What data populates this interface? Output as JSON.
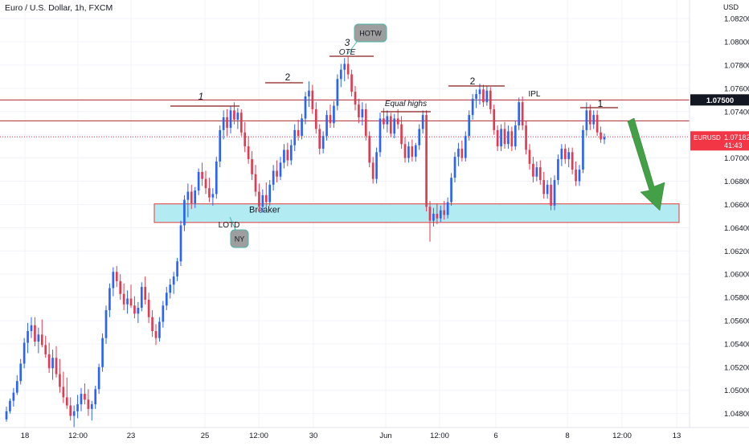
{
  "header": {
    "title": "Euro / U.S. Dollar, 1h, FXCM"
  },
  "chart_data": {
    "type": "candlestick",
    "currency": "USD",
    "y_ticks": [
      1.082,
      1.08,
      1.078,
      1.076,
      1.074,
      1.072,
      1.07,
      1.068,
      1.066,
      1.064,
      1.062,
      1.06,
      1.058,
      1.056,
      1.054,
      1.052,
      1.05,
      1.048
    ],
    "y_tick_labels": [
      "1.08200",
      "1.08000",
      "1.07800",
      "1.07600",
      "1.07400",
      "1.07200",
      "1.07000",
      "1.06800",
      "1.06600",
      "1.06400",
      "1.06200",
      "1.06000",
      "1.05800",
      "1.05600",
      "1.05400",
      "1.05200",
      "1.05000",
      "1.04800"
    ],
    "ylim": [
      1.0468,
      1.0836
    ],
    "x_ticks": [
      "18",
      "12:00",
      "23",
      "25",
      "12:00",
      "30",
      "Jun",
      "12:00",
      "6",
      "8",
      "12:00",
      "13"
    ],
    "price_lines": [
      {
        "value": 1.075,
        "label": "1.07500",
        "color": "#b22833"
      },
      {
        "value": 1.0732,
        "label": "",
        "color": "#b22833"
      }
    ],
    "current_price": {
      "symbol": "EURUSD",
      "value": 1.07182,
      "label": "1.07182",
      "countdown": "41:43",
      "color": "#f23645"
    },
    "zone": {
      "label": "Breaker",
      "top": 1.06605,
      "bottom": 1.06445,
      "color": "#b2ebf2"
    },
    "annotations": [
      {
        "text": "1",
        "price": 1.0747,
        "italic": true
      },
      {
        "text": "2",
        "price": 1.0765,
        "italic": false
      },
      {
        "text": "3",
        "price": 1.0871,
        "italic": true
      },
      {
        "text": "OTE",
        "price": 1.0789,
        "italic": true
      },
      {
        "text": "Equal highs",
        "price": 1.0744,
        "italic": true
      },
      {
        "text": "2",
        "price": 1.0763,
        "italic": false
      },
      {
        "text": "IPL",
        "price": 1.0753,
        "italic": false
      },
      {
        "text": "1",
        "price": 1.0745,
        "italic": false
      },
      {
        "text": "LOTD",
        "price": 1.0643,
        "italic": false
      }
    ],
    "callouts": [
      "HOTW",
      "NY"
    ],
    "candles": [
      {
        "o": 1.0475,
        "h": 1.0486,
        "l": 1.0473,
        "c": 1.0482
      },
      {
        "o": 1.0482,
        "h": 1.0493,
        "l": 1.048,
        "c": 1.0491
      },
      {
        "o": 1.0491,
        "h": 1.0502,
        "l": 1.0486,
        "c": 1.0498
      },
      {
        "o": 1.0498,
        "h": 1.0513,
        "l": 1.0496,
        "c": 1.0508
      },
      {
        "o": 1.0508,
        "h": 1.0527,
        "l": 1.0505,
        "c": 1.0523
      },
      {
        "o": 1.0523,
        "h": 1.0545,
        "l": 1.0519,
        "c": 1.0541
      },
      {
        "o": 1.0541,
        "h": 1.0558,
        "l": 1.0532,
        "c": 1.0551
      },
      {
        "o": 1.0551,
        "h": 1.0563,
        "l": 1.0545,
        "c": 1.0556
      },
      {
        "o": 1.0556,
        "h": 1.0563,
        "l": 1.0538,
        "c": 1.0542
      },
      {
        "o": 1.0542,
        "h": 1.0554,
        "l": 1.0532,
        "c": 1.0548
      },
      {
        "o": 1.0548,
        "h": 1.0561,
        "l": 1.0537,
        "c": 1.0539
      },
      {
        "o": 1.0539,
        "h": 1.0547,
        "l": 1.0528,
        "c": 1.0531
      },
      {
        "o": 1.0531,
        "h": 1.0541,
        "l": 1.0515,
        "c": 1.0519
      },
      {
        "o": 1.0519,
        "h": 1.0535,
        "l": 1.0509,
        "c": 1.0528
      },
      {
        "o": 1.0528,
        "h": 1.0538,
        "l": 1.0511,
        "c": 1.0514
      },
      {
        "o": 1.0514,
        "h": 1.0527,
        "l": 1.0498,
        "c": 1.0503
      },
      {
        "o": 1.0503,
        "h": 1.0516,
        "l": 1.0489,
        "c": 1.0494
      },
      {
        "o": 1.0494,
        "h": 1.0511,
        "l": 1.0484,
        "c": 1.0487
      },
      {
        "o": 1.0487,
        "h": 1.0494,
        "l": 1.0474,
        "c": 1.0478
      },
      {
        "o": 1.0478,
        "h": 1.0487,
        "l": 1.0468,
        "c": 1.0482
      },
      {
        "o": 1.0482,
        "h": 1.0496,
        "l": 1.0476,
        "c": 1.0488
      },
      {
        "o": 1.0488,
        "h": 1.0502,
        "l": 1.0482,
        "c": 1.0497
      },
      {
        "o": 1.0497,
        "h": 1.0506,
        "l": 1.0488,
        "c": 1.0492
      },
      {
        "o": 1.0492,
        "h": 1.0501,
        "l": 1.0478,
        "c": 1.0484
      },
      {
        "o": 1.0484,
        "h": 1.0491,
        "l": 1.0474,
        "c": 1.0488
      },
      {
        "o": 1.0488,
        "h": 1.0504,
        "l": 1.0484,
        "c": 1.0501
      },
      {
        "o": 1.0501,
        "h": 1.0523,
        "l": 1.0497,
        "c": 1.052
      },
      {
        "o": 1.052,
        "h": 1.0549,
        "l": 1.0516,
        "c": 1.0545
      },
      {
        "o": 1.0545,
        "h": 1.0573,
        "l": 1.054,
        "c": 1.0569
      },
      {
        "o": 1.0569,
        "h": 1.0592,
        "l": 1.0563,
        "c": 1.0588
      },
      {
        "o": 1.0588,
        "h": 1.0606,
        "l": 1.0581,
        "c": 1.0602
      },
      {
        "o": 1.0602,
        "h": 1.0607,
        "l": 1.0589,
        "c": 1.0594
      },
      {
        "o": 1.0594,
        "h": 1.06,
        "l": 1.0578,
        "c": 1.0583
      },
      {
        "o": 1.0583,
        "h": 1.0592,
        "l": 1.0569,
        "c": 1.0574
      },
      {
        "o": 1.0574,
        "h": 1.0586,
        "l": 1.0566,
        "c": 1.0579
      },
      {
        "o": 1.0579,
        "h": 1.0591,
        "l": 1.0571,
        "c": 1.0573
      },
      {
        "o": 1.0573,
        "h": 1.0581,
        "l": 1.0562,
        "c": 1.0566
      },
      {
        "o": 1.0566,
        "h": 1.0576,
        "l": 1.0558,
        "c": 1.0571
      },
      {
        "o": 1.0571,
        "h": 1.0593,
        "l": 1.0568,
        "c": 1.0589
      },
      {
        "o": 1.0589,
        "h": 1.0598,
        "l": 1.0574,
        "c": 1.0578
      },
      {
        "o": 1.0578,
        "h": 1.0584,
        "l": 1.0558,
        "c": 1.0563
      },
      {
        "o": 1.0563,
        "h": 1.0569,
        "l": 1.0546,
        "c": 1.0551
      },
      {
        "o": 1.0551,
        "h": 1.0557,
        "l": 1.0539,
        "c": 1.0545
      },
      {
        "o": 1.0545,
        "h": 1.0563,
        "l": 1.0542,
        "c": 1.0559
      },
      {
        "o": 1.0559,
        "h": 1.0577,
        "l": 1.0554,
        "c": 1.0573
      },
      {
        "o": 1.0573,
        "h": 1.0589,
        "l": 1.0569,
        "c": 1.0584
      },
      {
        "o": 1.0584,
        "h": 1.0596,
        "l": 1.0579,
        "c": 1.0591
      },
      {
        "o": 1.0591,
        "h": 1.0602,
        "l": 1.0583,
        "c": 1.0598
      },
      {
        "o": 1.0598,
        "h": 1.0614,
        "l": 1.0594,
        "c": 1.0611
      },
      {
        "o": 1.0611,
        "h": 1.0646,
        "l": 1.0607,
        "c": 1.0642
      },
      {
        "o": 1.0642,
        "h": 1.0668,
        "l": 1.0637,
        "c": 1.0664
      },
      {
        "o": 1.0664,
        "h": 1.0678,
        "l": 1.0649,
        "c": 1.0671
      },
      {
        "o": 1.0671,
        "h": 1.0677,
        "l": 1.0656,
        "c": 1.0661
      },
      {
        "o": 1.0661,
        "h": 1.0675,
        "l": 1.0657,
        "c": 1.0672
      },
      {
        "o": 1.0672,
        "h": 1.0691,
        "l": 1.0668,
        "c": 1.0688
      },
      {
        "o": 1.0688,
        "h": 1.0696,
        "l": 1.0676,
        "c": 1.0682
      },
      {
        "o": 1.0682,
        "h": 1.0689,
        "l": 1.0669,
        "c": 1.0674
      },
      {
        "o": 1.0674,
        "h": 1.0683,
        "l": 1.0662,
        "c": 1.0666
      },
      {
        "o": 1.0666,
        "h": 1.0674,
        "l": 1.0659,
        "c": 1.0669
      },
      {
        "o": 1.0669,
        "h": 1.0701,
        "l": 1.0665,
        "c": 1.0697
      },
      {
        "o": 1.0697,
        "h": 1.0728,
        "l": 1.0692,
        "c": 1.0724
      },
      {
        "o": 1.0724,
        "h": 1.0741,
        "l": 1.0716,
        "c": 1.0735
      },
      {
        "o": 1.0735,
        "h": 1.0742,
        "l": 1.0719,
        "c": 1.0726
      },
      {
        "o": 1.0726,
        "h": 1.0745,
        "l": 1.0721,
        "c": 1.0741
      },
      {
        "o": 1.0741,
        "h": 1.0748,
        "l": 1.0729,
        "c": 1.0733
      },
      {
        "o": 1.0733,
        "h": 1.0743,
        "l": 1.0725,
        "c": 1.0739
      },
      {
        "o": 1.0739,
        "h": 1.0742,
        "l": 1.0719,
        "c": 1.0722
      },
      {
        "o": 1.0722,
        "h": 1.0731,
        "l": 1.0705,
        "c": 1.071
      },
      {
        "o": 1.071,
        "h": 1.0719,
        "l": 1.0695,
        "c": 1.0699
      },
      {
        "o": 1.0699,
        "h": 1.0706,
        "l": 1.0681,
        "c": 1.0686
      },
      {
        "o": 1.0686,
        "h": 1.0694,
        "l": 1.0667,
        "c": 1.0671
      },
      {
        "o": 1.0671,
        "h": 1.0678,
        "l": 1.0654,
        "c": 1.0658
      },
      {
        "o": 1.0658,
        "h": 1.0673,
        "l": 1.0653,
        "c": 1.0668
      },
      {
        "o": 1.0668,
        "h": 1.0679,
        "l": 1.0657,
        "c": 1.0662
      },
      {
        "o": 1.0662,
        "h": 1.0681,
        "l": 1.0659,
        "c": 1.0677
      },
      {
        "o": 1.0677,
        "h": 1.0694,
        "l": 1.0672,
        "c": 1.0689
      },
      {
        "o": 1.0689,
        "h": 1.0698,
        "l": 1.0679,
        "c": 1.0684
      },
      {
        "o": 1.0684,
        "h": 1.0701,
        "l": 1.0681,
        "c": 1.0696
      },
      {
        "o": 1.0696,
        "h": 1.0712,
        "l": 1.0691,
        "c": 1.0707
      },
      {
        "o": 1.0707,
        "h": 1.0713,
        "l": 1.0693,
        "c": 1.0698
      },
      {
        "o": 1.0698,
        "h": 1.0716,
        "l": 1.0694,
        "c": 1.0711
      },
      {
        "o": 1.0711,
        "h": 1.0729,
        "l": 1.0706,
        "c": 1.0724
      },
      {
        "o": 1.0724,
        "h": 1.0733,
        "l": 1.0715,
        "c": 1.0719
      },
      {
        "o": 1.0719,
        "h": 1.0738,
        "l": 1.0716,
        "c": 1.0734
      },
      {
        "o": 1.0734,
        "h": 1.0757,
        "l": 1.0729,
        "c": 1.0753
      },
      {
        "o": 1.0753,
        "h": 1.0766,
        "l": 1.0744,
        "c": 1.0758
      },
      {
        "o": 1.0758,
        "h": 1.0763,
        "l": 1.0738,
        "c": 1.0742
      },
      {
        "o": 1.0742,
        "h": 1.0748,
        "l": 1.0721,
        "c": 1.0725
      },
      {
        "o": 1.0725,
        "h": 1.0729,
        "l": 1.0703,
        "c": 1.0708
      },
      {
        "o": 1.0708,
        "h": 1.0723,
        "l": 1.0704,
        "c": 1.0719
      },
      {
        "o": 1.0719,
        "h": 1.0741,
        "l": 1.0715,
        "c": 1.0737
      },
      {
        "o": 1.0737,
        "h": 1.0746,
        "l": 1.0726,
        "c": 1.073
      },
      {
        "o": 1.073,
        "h": 1.0749,
        "l": 1.0726,
        "c": 1.0745
      },
      {
        "o": 1.0745,
        "h": 1.0772,
        "l": 1.0741,
        "c": 1.0768
      },
      {
        "o": 1.0768,
        "h": 1.0781,
        "l": 1.0761,
        "c": 1.0776
      },
      {
        "o": 1.0776,
        "h": 1.0786,
        "l": 1.0766,
        "c": 1.0781
      },
      {
        "o": 1.0781,
        "h": 1.0787,
        "l": 1.0768,
        "c": 1.0772
      },
      {
        "o": 1.0772,
        "h": 1.0776,
        "l": 1.0753,
        "c": 1.0757
      },
      {
        "o": 1.0757,
        "h": 1.0762,
        "l": 1.0741,
        "c": 1.0746
      },
      {
        "o": 1.0746,
        "h": 1.0751,
        "l": 1.073,
        "c": 1.0735
      },
      {
        "o": 1.0735,
        "h": 1.0748,
        "l": 1.0728,
        "c": 1.0742
      },
      {
        "o": 1.0742,
        "h": 1.0747,
        "l": 1.0715,
        "c": 1.0719
      },
      {
        "o": 1.0719,
        "h": 1.0723,
        "l": 1.0692,
        "c": 1.0696
      },
      {
        "o": 1.0696,
        "h": 1.0701,
        "l": 1.0678,
        "c": 1.0682
      },
      {
        "o": 1.0682,
        "h": 1.0709,
        "l": 1.0678,
        "c": 1.0705
      },
      {
        "o": 1.0705,
        "h": 1.0739,
        "l": 1.0701,
        "c": 1.0734
      },
      {
        "o": 1.0734,
        "h": 1.0743,
        "l": 1.0725,
        "c": 1.0729
      },
      {
        "o": 1.0729,
        "h": 1.0741,
        "l": 1.0722,
        "c": 1.0736
      },
      {
        "o": 1.0736,
        "h": 1.0739,
        "l": 1.0718,
        "c": 1.0721
      },
      {
        "o": 1.0721,
        "h": 1.0738,
        "l": 1.0717,
        "c": 1.0734
      },
      {
        "o": 1.0734,
        "h": 1.0742,
        "l": 1.0725,
        "c": 1.0729
      },
      {
        "o": 1.0729,
        "h": 1.0736,
        "l": 1.0708,
        "c": 1.0712
      },
      {
        "o": 1.0712,
        "h": 1.0718,
        "l": 1.0696,
        "c": 1.07
      },
      {
        "o": 1.07,
        "h": 1.0714,
        "l": 1.0696,
        "c": 1.071
      },
      {
        "o": 1.071,
        "h": 1.0716,
        "l": 1.0697,
        "c": 1.0701
      },
      {
        "o": 1.0701,
        "h": 1.0713,
        "l": 1.0697,
        "c": 1.0711
      },
      {
        "o": 1.0711,
        "h": 1.0729,
        "l": 1.0707,
        "c": 1.0725
      },
      {
        "o": 1.0725,
        "h": 1.0741,
        "l": 1.0721,
        "c": 1.0737
      },
      {
        "o": 1.0737,
        "h": 1.0741,
        "l": 1.0654,
        "c": 1.0658
      },
      {
        "o": 1.0658,
        "h": 1.0663,
        "l": 1.0628,
        "c": 1.0646
      },
      {
        "o": 1.0646,
        "h": 1.0657,
        "l": 1.0641,
        "c": 1.0652
      },
      {
        "o": 1.0652,
        "h": 1.0661,
        "l": 1.0643,
        "c": 1.0648
      },
      {
        "o": 1.0648,
        "h": 1.0659,
        "l": 1.0645,
        "c": 1.0655
      },
      {
        "o": 1.0655,
        "h": 1.0663,
        "l": 1.0647,
        "c": 1.0651
      },
      {
        "o": 1.0651,
        "h": 1.0666,
        "l": 1.0648,
        "c": 1.0662
      },
      {
        "o": 1.0662,
        "h": 1.0687,
        "l": 1.0659,
        "c": 1.0683
      },
      {
        "o": 1.0683,
        "h": 1.0705,
        "l": 1.0679,
        "c": 1.0701
      },
      {
        "o": 1.0701,
        "h": 1.0713,
        "l": 1.0693,
        "c": 1.0708
      },
      {
        "o": 1.0708,
        "h": 1.0715,
        "l": 1.0697,
        "c": 1.07
      },
      {
        "o": 1.07,
        "h": 1.0723,
        "l": 1.0697,
        "c": 1.0719
      },
      {
        "o": 1.0719,
        "h": 1.0741,
        "l": 1.0715,
        "c": 1.0737
      },
      {
        "o": 1.0737,
        "h": 1.0755,
        "l": 1.0733,
        "c": 1.0751
      },
      {
        "o": 1.0751,
        "h": 1.0759,
        "l": 1.0743,
        "c": 1.0755
      },
      {
        "o": 1.0755,
        "h": 1.0764,
        "l": 1.0746,
        "c": 1.0759
      },
      {
        "o": 1.0759,
        "h": 1.0763,
        "l": 1.0744,
        "c": 1.0748
      },
      {
        "o": 1.0748,
        "h": 1.0762,
        "l": 1.0745,
        "c": 1.0758
      },
      {
        "o": 1.0758,
        "h": 1.0761,
        "l": 1.0738,
        "c": 1.0742
      },
      {
        "o": 1.0742,
        "h": 1.0746,
        "l": 1.072,
        "c": 1.0724
      },
      {
        "o": 1.0724,
        "h": 1.0728,
        "l": 1.0706,
        "c": 1.071
      },
      {
        "o": 1.071,
        "h": 1.0729,
        "l": 1.0706,
        "c": 1.0725
      },
      {
        "o": 1.0725,
        "h": 1.0731,
        "l": 1.0708,
        "c": 1.0712
      },
      {
        "o": 1.0712,
        "h": 1.0728,
        "l": 1.0708,
        "c": 1.0723
      },
      {
        "o": 1.0723,
        "h": 1.0727,
        "l": 1.0706,
        "c": 1.071
      },
      {
        "o": 1.071,
        "h": 1.0732,
        "l": 1.0707,
        "c": 1.0728
      },
      {
        "o": 1.0728,
        "h": 1.0752,
        "l": 1.0724,
        "c": 1.0748
      },
      {
        "o": 1.0748,
        "h": 1.0753,
        "l": 1.0724,
        "c": 1.0728
      },
      {
        "o": 1.0728,
        "h": 1.0732,
        "l": 1.0703,
        "c": 1.0707
      },
      {
        "o": 1.0707,
        "h": 1.0712,
        "l": 1.069,
        "c": 1.0695
      },
      {
        "o": 1.0695,
        "h": 1.0701,
        "l": 1.0679,
        "c": 1.0684
      },
      {
        "o": 1.0684,
        "h": 1.0697,
        "l": 1.068,
        "c": 1.0692
      },
      {
        "o": 1.0692,
        "h": 1.0698,
        "l": 1.0677,
        "c": 1.0681
      },
      {
        "o": 1.0681,
        "h": 1.0688,
        "l": 1.0665,
        "c": 1.0669
      },
      {
        "o": 1.0669,
        "h": 1.0681,
        "l": 1.0665,
        "c": 1.0677
      },
      {
        "o": 1.0677,
        "h": 1.0683,
        "l": 1.0655,
        "c": 1.0659
      },
      {
        "o": 1.0659,
        "h": 1.0685,
        "l": 1.0655,
        "c": 1.0681
      },
      {
        "o": 1.0681,
        "h": 1.0703,
        "l": 1.0677,
        "c": 1.0699
      },
      {
        "o": 1.0699,
        "h": 1.0712,
        "l": 1.0693,
        "c": 1.0708
      },
      {
        "o": 1.0708,
        "h": 1.0712,
        "l": 1.0695,
        "c": 1.0699
      },
      {
        "o": 1.0699,
        "h": 1.0709,
        "l": 1.0692,
        "c": 1.0705
      },
      {
        "o": 1.0705,
        "h": 1.0709,
        "l": 1.0686,
        "c": 1.069
      },
      {
        "o": 1.069,
        "h": 1.0697,
        "l": 1.0676,
        "c": 1.068
      },
      {
        "o": 1.068,
        "h": 1.0694,
        "l": 1.0676,
        "c": 1.069
      },
      {
        "o": 1.069,
        "h": 1.0728,
        "l": 1.0687,
        "c": 1.0724
      },
      {
        "o": 1.0724,
        "h": 1.0748,
        "l": 1.0719,
        "c": 1.0741
      },
      {
        "o": 1.0741,
        "h": 1.0746,
        "l": 1.0724,
        "c": 1.0729
      },
      {
        "o": 1.0729,
        "h": 1.0741,
        "l": 1.0725,
        "c": 1.0737
      },
      {
        "o": 1.0737,
        "h": 1.0741,
        "l": 1.0719,
        "c": 1.0722
      },
      {
        "o": 1.0722,
        "h": 1.0727,
        "l": 1.0713,
        "c": 1.0716
      },
      {
        "o": 1.0716,
        "h": 1.0721,
        "l": 1.0712,
        "c": 1.0718
      }
    ]
  }
}
